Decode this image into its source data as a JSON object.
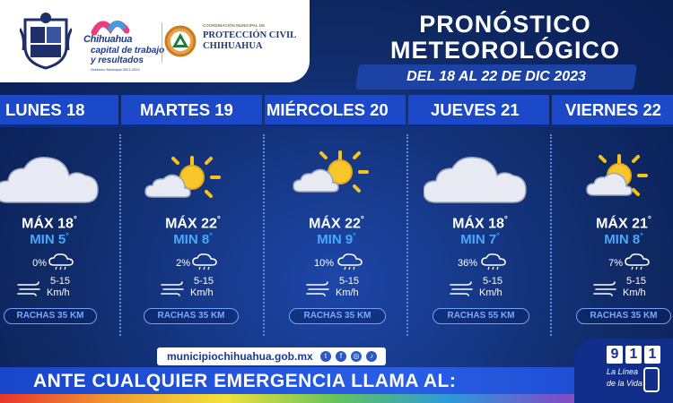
{
  "header": {
    "city_name": "Chihuahua",
    "tagline1": "capital de trabajo",
    "tagline2": "y resultados",
    "gov_period": "Gobierno Municipal 2021-2024",
    "pc_small": "COORDINACIÓN MUNICIPAL DE",
    "pc_name1": "PROTECCIÓN CIVIL",
    "pc_name2": "CHIHUAHUA",
    "title_line1": "PRONÓSTICO",
    "title_line2": "METEOROLÓGICO",
    "date_range": "DEL 18 AL 22 DE DIC 2023"
  },
  "days": [
    {
      "name": "LUNES 18",
      "icon": "cloud-icon",
      "max": "MÁX 18",
      "min": "MIN 5",
      "deg": "°",
      "rain_pct": "0%",
      "wind_range": "5-15",
      "wind_unit": "Km/h",
      "gusts": "RACHAS 35 KM"
    },
    {
      "name": "MARTES 19",
      "icon": "sun-cloud-icon",
      "max": "MÁX 22",
      "min": "MIN 8",
      "deg": "°",
      "rain_pct": "2%",
      "wind_range": "5-15",
      "wind_unit": "Km/h",
      "gusts": "RACHAS 35 KM"
    },
    {
      "name": "MIÉRCOLES 20",
      "icon": "sun-cloud-icon",
      "max": "MÁX 22",
      "min": "MIN 9",
      "deg": "°",
      "rain_pct": "10%",
      "wind_range": "5-15",
      "wind_unit": "Km/h",
      "gusts": "RACHAS 35 KM"
    },
    {
      "name": "JUEVES 21",
      "icon": "cloud-icon",
      "max": "MÁX 18",
      "min": "MIN 7",
      "deg": "°",
      "rain_pct": "36%",
      "wind_range": "5-15",
      "wind_unit": "Km/h",
      "gusts": "RACHAS 55 KM"
    },
    {
      "name": "VIERNES 22",
      "icon": "sun-cloud-icon",
      "max": "MÁX 21",
      "min": "MIN 8",
      "deg": "°",
      "rain_pct": "7%",
      "wind_range": "5-15",
      "wind_unit": "Km/h",
      "gusts": "RACHAS 35 KM"
    }
  ],
  "footer": {
    "url": "municipiochihuahua.gob.mx",
    "emergency": "ANTE CUALQUIER EMERGENCIA LLAMA AL:",
    "digits": [
      "9",
      "1",
      "1"
    ],
    "linea1": "La Línea",
    "linea2": "de la Vida"
  },
  "colors": {
    "background": "#0f2a66",
    "day_bar": "#1b49c7",
    "min_temp": "#4aa7ff",
    "gusts": "#79aaff"
  }
}
